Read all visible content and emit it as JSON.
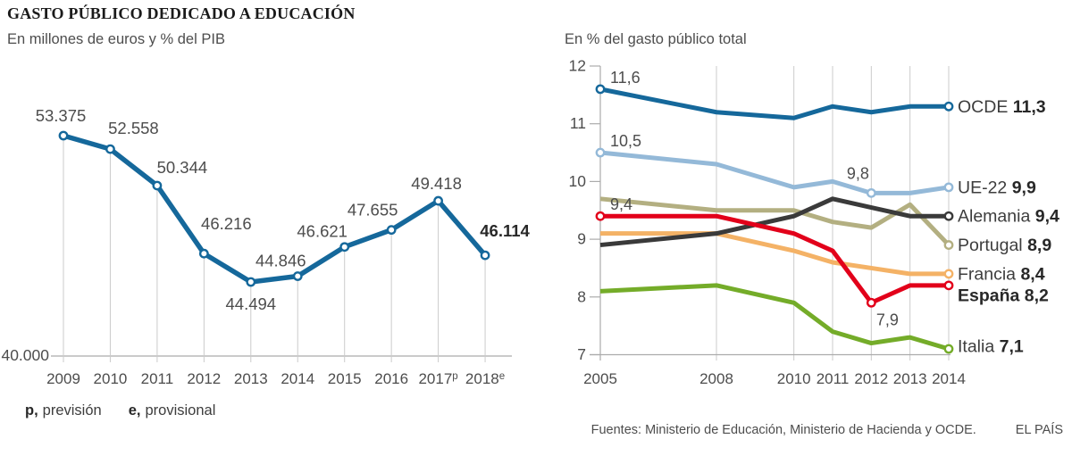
{
  "header": {
    "title": "GASTO PÚBLICO DEDICADO A EDUCACIÓN",
    "subtitle_left": "En millones de euros y % del PIB",
    "subtitle_right": "En % del gasto público total"
  },
  "footer": {
    "notes": [
      {
        "abbr": "p,",
        "label": "previsión"
      },
      {
        "abbr": "e,",
        "label": "provisional"
      }
    ],
    "sources": "Fuentes: Ministerio de Educación, Ministerio de Hacienda y OCDE.",
    "brand": "EL PAÍS"
  },
  "palette": {
    "text_dark": "#282828",
    "text_gray": "#4d4d4d",
    "grid": "#cbcbcb",
    "axis": "#ababab"
  },
  "chart_data": [
    {
      "id": "gasto-millones",
      "type": "line",
      "title": "En millones de euros y % del PIB",
      "categories": [
        "2009",
        "2010",
        "2011",
        "2012",
        "2013",
        "2014",
        "2015",
        "2016",
        "2017",
        "2018"
      ],
      "category_sups": [
        "",
        "",
        "",
        "",
        "",
        "",
        "",
        "",
        "p",
        "e"
      ],
      "values": [
        53375,
        52558,
        50344,
        46216,
        44494,
        44846,
        46621,
        47655,
        49418,
        46114
      ],
      "point_labels": [
        "53.375",
        "52.558",
        "50.344",
        "46.216",
        "44.494",
        "44.846",
        "46.621",
        "47.655",
        "49.418",
        "46.114"
      ],
      "emphasized_label_index": 9,
      "baseline_value": 40000,
      "baseline_label": "40.000",
      "ylim": [
        40000,
        54000
      ],
      "line_color": "#15689B",
      "grid": "vertical"
    },
    {
      "id": "gasto-porcentaje",
      "type": "line",
      "title": "En % del gasto público total",
      "x": [
        2005,
        2008,
        2010,
        2011,
        2012,
        2013,
        2014
      ],
      "x_tick_labels": [
        "2005",
        "2008",
        "2010",
        "2011",
        "2012",
        "2013",
        "2014"
      ],
      "xlim": [
        2005,
        2014
      ],
      "ylim": [
        7,
        12
      ],
      "yticks": [
        12,
        11,
        10,
        9,
        8,
        7
      ],
      "grid": "vertical",
      "legend_position": "right-of-line-ends",
      "series": [
        {
          "name": "OCDE",
          "value_label": "11,3",
          "color": "#15689B",
          "bold_name": false,
          "values": [
            11.6,
            11.2,
            11.1,
            11.3,
            11.2,
            11.3,
            11.3
          ],
          "markers": [
            2005,
            2014
          ],
          "annotations": [
            {
              "x": 2005,
              "text": "11,6",
              "placement": "above-right"
            }
          ]
        },
        {
          "name": "UE-22",
          "value_label": "9,9",
          "color": "#94B9D8",
          "bold_name": false,
          "values": [
            10.5,
            10.3,
            9.9,
            10.0,
            9.8,
            9.8,
            9.9
          ],
          "markers": [
            2005,
            2012,
            2014
          ],
          "annotations": [
            {
              "x": 2005,
              "text": "10,5",
              "placement": "above-right"
            },
            {
              "x": 2012,
              "text": "9,8",
              "placement": "above"
            }
          ]
        },
        {
          "name": "Alemania",
          "value_label": "9,4",
          "color": "#3A3A3A",
          "bold_name": false,
          "values": [
            8.9,
            9.1,
            9.4,
            9.7,
            9.55,
            9.4,
            9.4
          ],
          "markers": [
            2014
          ],
          "annotations": []
        },
        {
          "name": "Portugal",
          "value_label": "8,9",
          "color": "#B3AF81",
          "bold_name": false,
          "values": [
            9.7,
            9.5,
            9.5,
            9.3,
            9.2,
            9.6,
            8.9
          ],
          "markers": [
            2014
          ],
          "annotations": []
        },
        {
          "name": "Francia",
          "value_label": "8,4",
          "color": "#F4B266",
          "bold_name": false,
          "values": [
            9.1,
            9.1,
            8.8,
            8.6,
            8.5,
            8.4,
            8.4
          ],
          "markers": [
            2014
          ],
          "annotations": []
        },
        {
          "name": "España",
          "value_label": "8,2",
          "color": "#E2001A",
          "bold_name": true,
          "values": [
            9.4,
            9.4,
            9.1,
            8.8,
            7.9,
            8.2,
            8.2
          ],
          "markers": [
            2005,
            2012,
            2014
          ],
          "annotations": [
            {
              "x": 2005,
              "text": "9,4",
              "placement": "above-right"
            },
            {
              "x": 2012,
              "text": "7,9",
              "placement": "below"
            }
          ]
        },
        {
          "name": "Italia",
          "value_label": "7,1",
          "color": "#74AC29",
          "bold_name": false,
          "values": [
            8.1,
            8.2,
            7.9,
            7.4,
            7.2,
            7.3,
            7.1
          ],
          "markers": [
            2014
          ],
          "annotations": []
        }
      ]
    }
  ]
}
